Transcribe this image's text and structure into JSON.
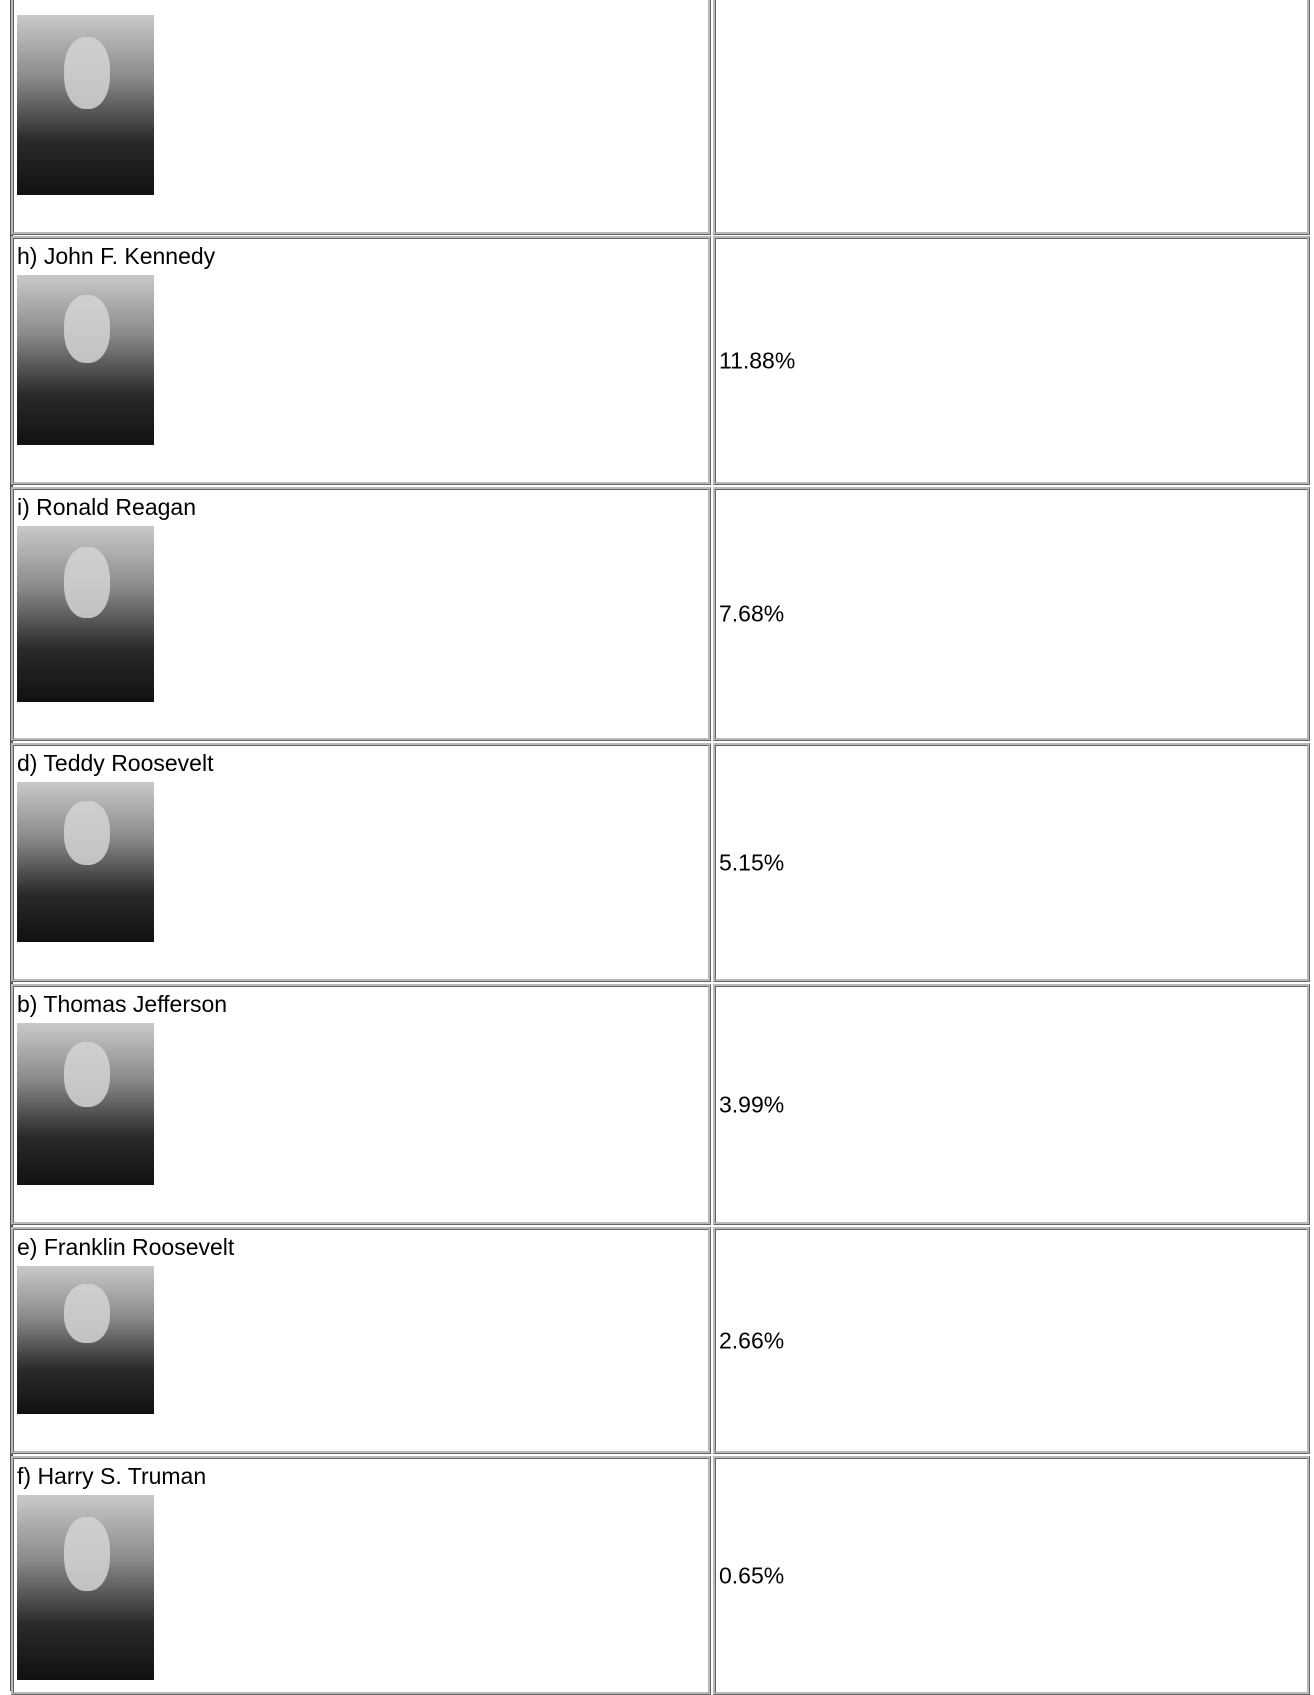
{
  "table": {
    "rows": [
      {
        "label": "h) John F. Kennedy",
        "value": "11.88%"
      },
      {
        "label": "i) Ronald Reagan",
        "value": "7.68%"
      },
      {
        "label": "d) Teddy Roosevelt",
        "value": "5.15%"
      },
      {
        "label": "b) Thomas Jefferson",
        "value": "3.99%"
      },
      {
        "label": "e) Franklin Roosevelt",
        "value": "2.66%"
      },
      {
        "label": "f) Harry S. Truman",
        "value": "0.65%"
      }
    ]
  }
}
